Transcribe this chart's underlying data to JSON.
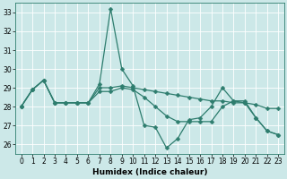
{
  "xlabel": "Humidex (Indice chaleur)",
  "bg_color": "#cce8e8",
  "grid_color": "#ffffff",
  "line_color": "#2e7d6e",
  "xlim": [
    -0.5,
    23.5
  ],
  "ylim": [
    25.5,
    33.5
  ],
  "yticks": [
    26,
    27,
    28,
    29,
    30,
    31,
    32,
    33
  ],
  "xticks": [
    0,
    1,
    2,
    3,
    4,
    5,
    6,
    7,
    8,
    9,
    10,
    11,
    12,
    13,
    14,
    15,
    16,
    17,
    18,
    19,
    20,
    21,
    22,
    23
  ],
  "seriesA": [
    28.0,
    28.9,
    29.4,
    28.2,
    28.2,
    28.2,
    28.2,
    29.0,
    29.0,
    29.1,
    29.0,
    28.9,
    28.8,
    28.7,
    28.6,
    28.5,
    28.4,
    28.3,
    28.3,
    28.2,
    28.2,
    28.1,
    27.9,
    27.9
  ],
  "seriesB": [
    28.0,
    28.9,
    29.4,
    28.2,
    28.2,
    28.2,
    28.2,
    29.2,
    33.2,
    30.0,
    29.1,
    27.0,
    26.9,
    25.8,
    26.3,
    27.3,
    27.4,
    28.0,
    29.0,
    28.3,
    28.3,
    27.4,
    26.7,
    26.5
  ],
  "seriesC": [
    28.0,
    28.9,
    29.4,
    28.2,
    28.2,
    28.2,
    28.2,
    28.8,
    28.8,
    29.0,
    28.9,
    28.5,
    28.0,
    27.5,
    27.2,
    27.2,
    27.2,
    27.2,
    28.0,
    28.3,
    28.2,
    27.4,
    26.7,
    26.5
  ]
}
